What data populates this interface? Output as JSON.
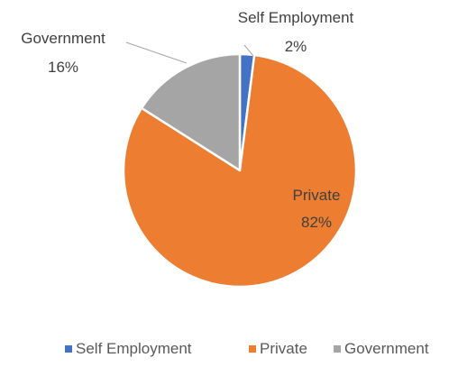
{
  "chart_data": {
    "type": "pie",
    "title": "",
    "slices": [
      {
        "label": "Self Employment",
        "value": 2,
        "display": "2%",
        "color": "#4472C4"
      },
      {
        "label": "Private",
        "value": 82,
        "display": "82%",
        "color": "#ED7D31"
      },
      {
        "label": "Government",
        "value": 16,
        "display": "16%",
        "color": "#A5A5A5"
      }
    ],
    "legend": {
      "position": "bottom",
      "items": [
        "Self Employment",
        "Private",
        "Government"
      ]
    }
  }
}
